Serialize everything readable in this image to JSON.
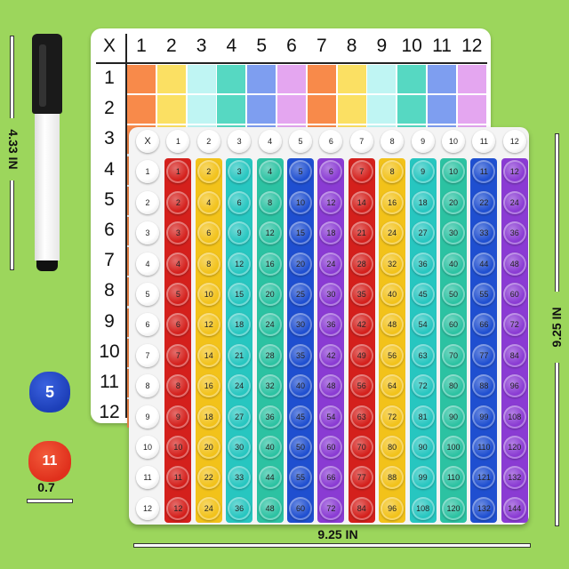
{
  "whiteboard": {
    "corner": "X",
    "col_headers": [
      "1",
      "2",
      "3",
      "4",
      "5",
      "6",
      "7",
      "8",
      "9",
      "10",
      "11",
      "12"
    ],
    "row_headers": [
      "1",
      "2",
      "3",
      "4",
      "5",
      "6",
      "7",
      "8",
      "9",
      "10",
      "11",
      "12"
    ],
    "col_colors": [
      "#f88a4a",
      "#fbe063",
      "#bff5f3",
      "#56d8c2",
      "#7e9ef0",
      "#e4a6f0",
      "#f88a4a",
      "#fbe063",
      "#bff5f3",
      "#56d8c2",
      "#7e9ef0",
      "#e4a6f0"
    ]
  },
  "popit": {
    "corner": "X",
    "col_headers": [
      "1",
      "2",
      "3",
      "4",
      "5",
      "6",
      "7",
      "8",
      "9",
      "10",
      "11",
      "12"
    ],
    "row_headers": [
      "1",
      "2",
      "3",
      "4",
      "5",
      "6",
      "7",
      "8",
      "9",
      "10",
      "11",
      "12"
    ],
    "strip_colors": [
      "#d4201c",
      "#f2c21a",
      "#27c6c0",
      "#2cc2a2",
      "#1f4fd0",
      "#8a3bd3",
      "#d4201c",
      "#f2c21a",
      "#27c6c0",
      "#2cc2a2",
      "#1f4fd0",
      "#8a3bd3"
    ],
    "products": [
      [
        "1",
        "2",
        "3",
        "4",
        "5",
        "6",
        "7",
        "8",
        "9",
        "10",
        "11",
        "12"
      ],
      [
        "2",
        "4",
        "6",
        "8",
        "10",
        "12",
        "14",
        "16",
        "18",
        "20",
        "22",
        "24"
      ],
      [
        "3",
        "6",
        "9",
        "12",
        "15",
        "18",
        "21",
        "24",
        "27",
        "30",
        "33",
        "36"
      ],
      [
        "4",
        "8",
        "12",
        "16",
        "20",
        "24",
        "28",
        "32",
        "36",
        "40",
        "44",
        "48"
      ],
      [
        "5",
        "10",
        "15",
        "20",
        "25",
        "30",
        "35",
        "40",
        "45",
        "50",
        "55",
        "60"
      ],
      [
        "6",
        "12",
        "18",
        "24",
        "30",
        "36",
        "42",
        "48",
        "54",
        "60",
        "66",
        "72"
      ],
      [
        "7",
        "14",
        "21",
        "28",
        "35",
        "42",
        "49",
        "56",
        "63",
        "70",
        "77",
        "84"
      ],
      [
        "8",
        "16",
        "24",
        "32",
        "40",
        "48",
        "56",
        "64",
        "72",
        "80",
        "88",
        "96"
      ],
      [
        "9",
        "18",
        "27",
        "36",
        "45",
        "54",
        "63",
        "72",
        "81",
        "90",
        "99",
        "108"
      ],
      [
        "10",
        "20",
        "30",
        "40",
        "50",
        "60",
        "70",
        "80",
        "90",
        "100",
        "110",
        "120"
      ],
      [
        "11",
        "22",
        "33",
        "44",
        "55",
        "66",
        "77",
        "88",
        "99",
        "110",
        "121",
        "132"
      ],
      [
        "12",
        "24",
        "36",
        "48",
        "60",
        "72",
        "84",
        "96",
        "108",
        "120",
        "132",
        "144"
      ]
    ]
  },
  "dimensions": {
    "whiteboard_height": "4.33 IN",
    "board_height": "9.25 IN",
    "board_width": "9.25 IN",
    "dice_size": "0.7"
  },
  "dice": [
    {
      "color": "#1d3fb8",
      "face": "5"
    },
    {
      "color": "#e0301c",
      "face": "11"
    }
  ]
}
